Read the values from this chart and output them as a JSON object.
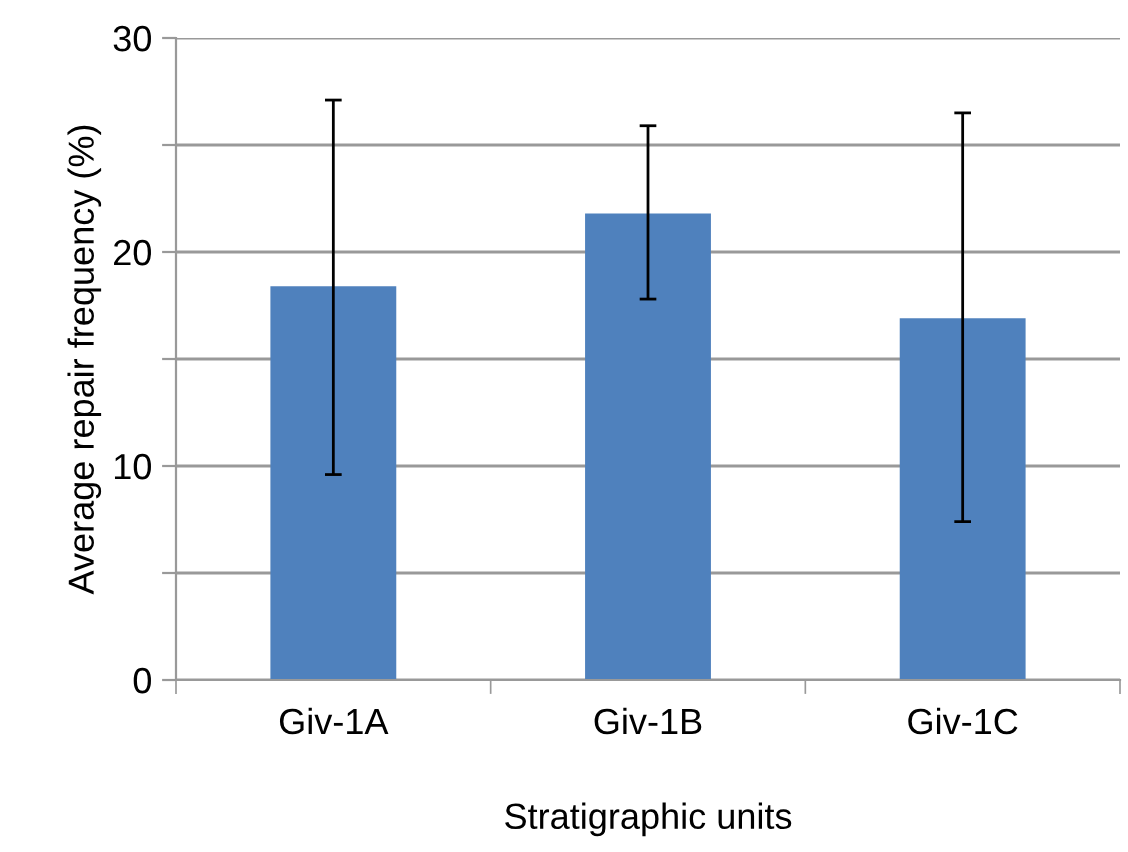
{
  "chart_data": {
    "type": "bar",
    "xlabel": "Stratigraphic units",
    "ylabel": "Average repair frequency (%)",
    "categories": [
      "Giv-1A",
      "Giv-1B",
      "Giv-1C"
    ],
    "values": [
      18.4,
      21.8,
      16.9
    ],
    "errors": [
      [
        9.6,
        27.1
      ],
      [
        17.8,
        25.9
      ],
      [
        7.4,
        26.5
      ]
    ],
    "color": "#4f81bd",
    "ylim": [
      0,
      30
    ],
    "yticks": [
      0,
      {
        "value": 5,
        "label": null
      },
      10,
      {
        "value": 15,
        "label": null
      },
      20,
      {
        "value": 25,
        "label": null
      },
      30
    ],
    "grid": "y",
    "legend": false
  }
}
